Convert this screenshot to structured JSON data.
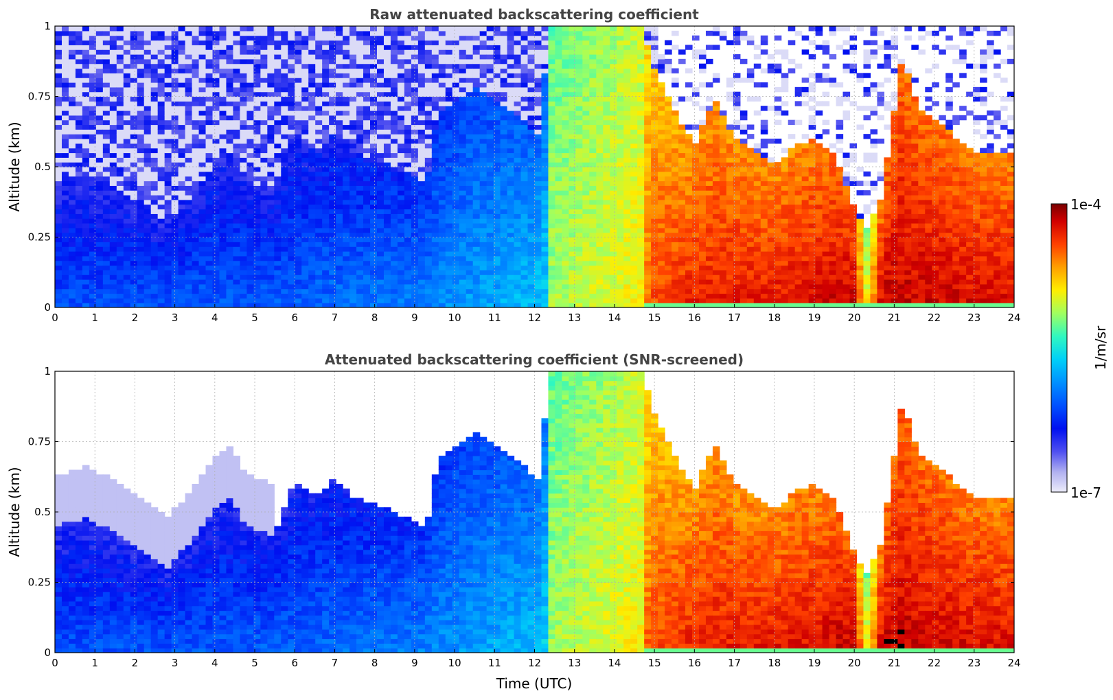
{
  "chart_data": [
    {
      "type": "heatmap",
      "title": "Raw attenuated backscattering coefficient",
      "ylabel": "Altitude (km)",
      "xlabel": "",
      "x_ticks": [
        "0",
        "1",
        "2",
        "3",
        "4",
        "5",
        "6",
        "7",
        "8",
        "9",
        "10",
        "11",
        "12",
        "13",
        "14",
        "15",
        "16",
        "17",
        "18",
        "19",
        "20",
        "21",
        "22",
        "23",
        "24"
      ],
      "y_ticks": [
        "0",
        "0.25",
        "0.5",
        "0.75",
        "1"
      ],
      "xlim": [
        0,
        24
      ],
      "ylim": [
        0,
        1
      ],
      "grid": true,
      "screened": false
    },
    {
      "type": "heatmap",
      "title": "Attenuated backscattering coefficient (SNR-screened)",
      "ylabel": "Altitude (km)",
      "xlabel": "Time (UTC)",
      "x_ticks": [
        "0",
        "1",
        "2",
        "3",
        "4",
        "5",
        "6",
        "7",
        "8",
        "9",
        "10",
        "11",
        "12",
        "13",
        "14",
        "15",
        "16",
        "17",
        "18",
        "19",
        "20",
        "21",
        "22",
        "23",
        "24"
      ],
      "y_ticks": [
        "0",
        "0.25",
        "0.5",
        "0.75",
        "1"
      ],
      "xlim": [
        0,
        24
      ],
      "ylim": [
        0,
        1
      ],
      "grid": true,
      "screened": true
    }
  ],
  "colorbar": {
    "label": "1/m/sr",
    "max_label": "1e-4",
    "min_label": "1e-7",
    "colormap": [
      "#e8e8fa",
      "#b8b8f0",
      "#6060e8",
      "#0000f0",
      "#0060ff",
      "#00c8ff",
      "#30ffc8",
      "#c8ff30",
      "#ffd000",
      "#ff6000",
      "#e01000",
      "#800000"
    ]
  }
}
